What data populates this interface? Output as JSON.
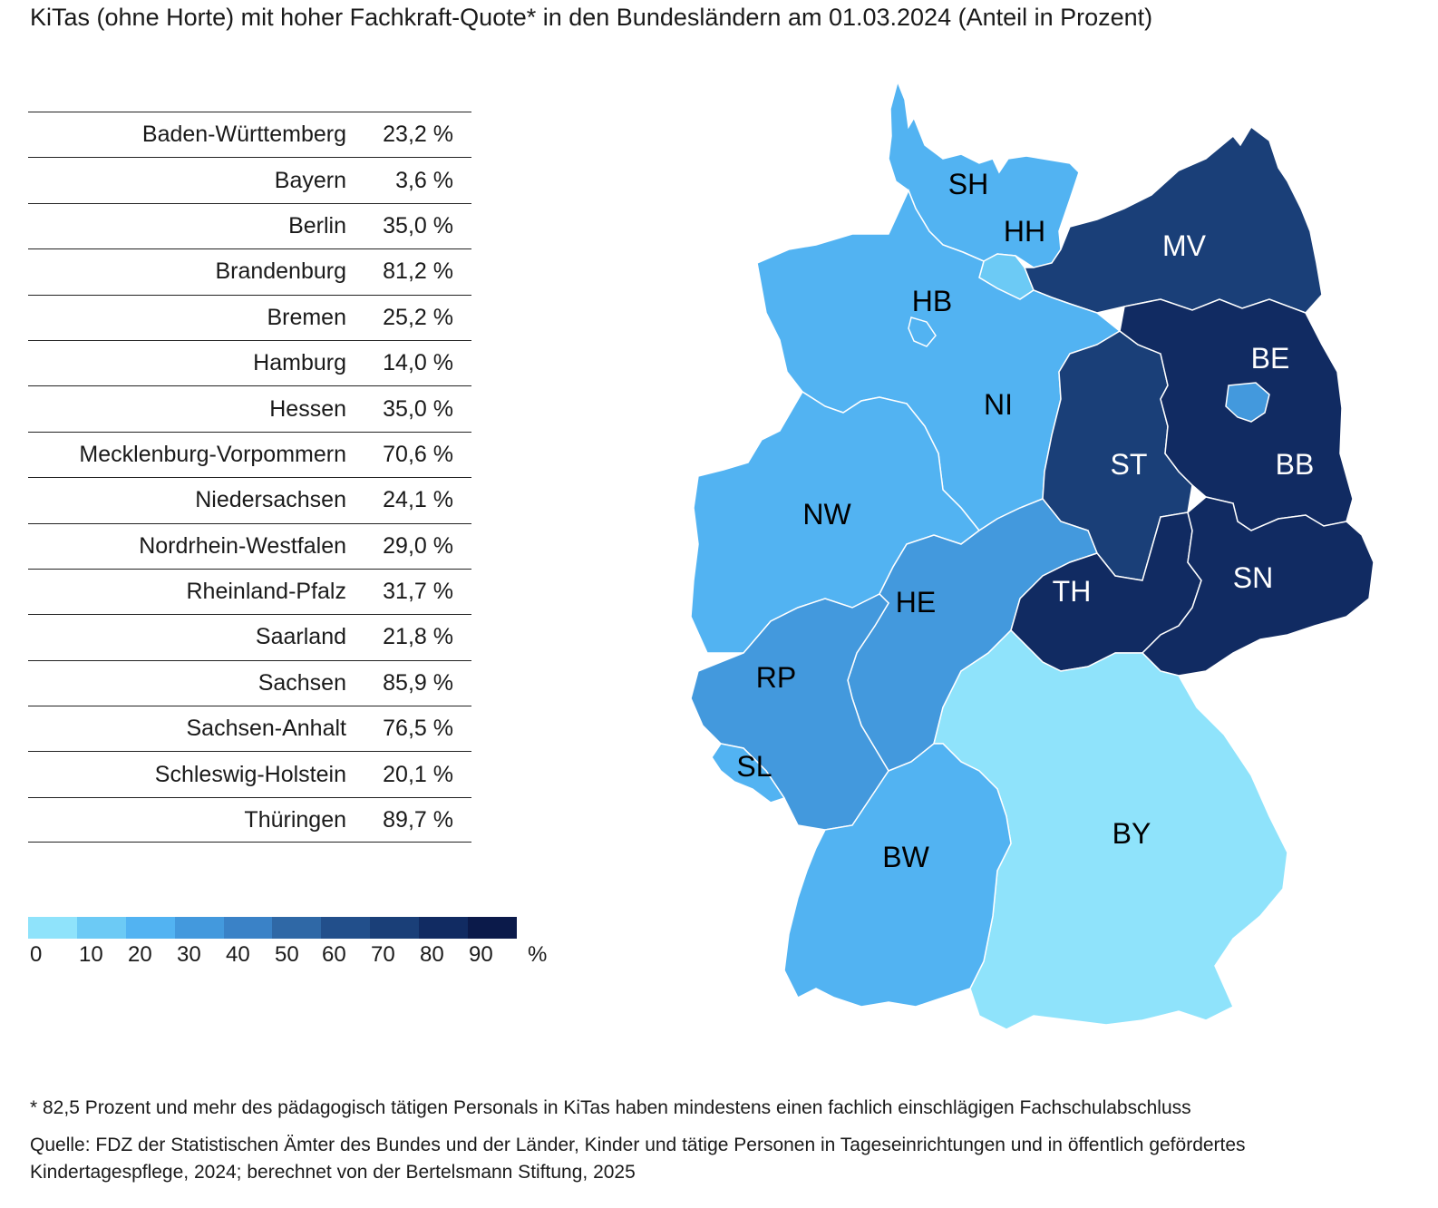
{
  "title": "KiTas (ohne Horte) mit hoher Fachkraft-Quote* in den Bundesländern am 01.03.2024 (Anteil in Prozent)",
  "table": [
    {
      "name": "Baden-Württemberg",
      "value": "23,2 %"
    },
    {
      "name": "Bayern",
      "value": "3,6 %"
    },
    {
      "name": "Berlin",
      "value": "35,0 %"
    },
    {
      "name": "Brandenburg",
      "value": "81,2 %"
    },
    {
      "name": "Bremen",
      "value": "25,2 %"
    },
    {
      "name": "Hamburg",
      "value": "14,0 %"
    },
    {
      "name": "Hessen",
      "value": "35,0 %"
    },
    {
      "name": "Mecklenburg-Vorpommern",
      "value": "70,6 %"
    },
    {
      "name": "Niedersachsen",
      "value": "24,1 %"
    },
    {
      "name": "Nordrhein-Westfalen",
      "value": "29,0 %"
    },
    {
      "name": "Rheinland-Pfalz",
      "value": "31,7 %"
    },
    {
      "name": "Saarland",
      "value": "21,8 %"
    },
    {
      "name": "Sachsen",
      "value": "85,9 %"
    },
    {
      "name": "Sachsen-Anhalt",
      "value": "76,5 %"
    },
    {
      "name": "Schleswig-Holstein",
      "value": "20,1 %"
    },
    {
      "name": "Thüringen",
      "value": "89,7 %"
    }
  ],
  "legend": {
    "colors": [
      "#8fe3fb",
      "#6ccaf5",
      "#52b3f2",
      "#4399dd",
      "#3a82c7",
      "#2f68a6",
      "#224f8b",
      "#1a3f78",
      "#112b62",
      "#0b1a4a"
    ],
    "ticks": [
      "0",
      "10",
      "20",
      "30",
      "40",
      "50",
      "60",
      "70",
      "80",
      "90"
    ],
    "unit": "%"
  },
  "map": {
    "states": {
      "SH": {
        "color": "#52b3f2"
      },
      "HH": {
        "color": "#6ccaf5"
      },
      "MV": {
        "color": "#1a3f78"
      },
      "HB": {
        "color": "#52b3f2"
      },
      "NI": {
        "color": "#52b3f2"
      },
      "BE": {
        "color": "#4399dd"
      },
      "BB": {
        "color": "#112b62"
      },
      "ST": {
        "color": "#1a3f78"
      },
      "NW": {
        "color": "#52b3f2"
      },
      "HE": {
        "color": "#4399dd"
      },
      "TH": {
        "color": "#112b62"
      },
      "SN": {
        "color": "#112b62"
      },
      "RP": {
        "color": "#4399dd"
      },
      "SL": {
        "color": "#52b3f2"
      },
      "BY": {
        "color": "#8fe3fb"
      },
      "BW": {
        "color": "#52b3f2"
      }
    },
    "labels": {
      "SH": "SH",
      "HH": "HH",
      "MV": "MV",
      "HB": "HB",
      "NI": "NI",
      "BE": "BE",
      "BB": "BB",
      "ST": "ST",
      "NW": "NW",
      "HE": "HE",
      "TH": "TH",
      "SN": "SN",
      "RP": "RP",
      "SL": "SL",
      "BY": "BY",
      "BW": "BW"
    }
  },
  "footnote": "* 82,5 Prozent und mehr des pädagogisch tätigen Personals in KiTas haben mindestens einen fachlich einschlägigen Fachschulabschluss",
  "source": "Quelle: FDZ der Statistischen Ämter des Bundes und der Länder, Kinder und tätige Personen in Tageseinrichtungen und in öffentlich gefördertes Kindertagespflege, 2024; berechnet von der Bertelsmann Stiftung, 2025"
}
